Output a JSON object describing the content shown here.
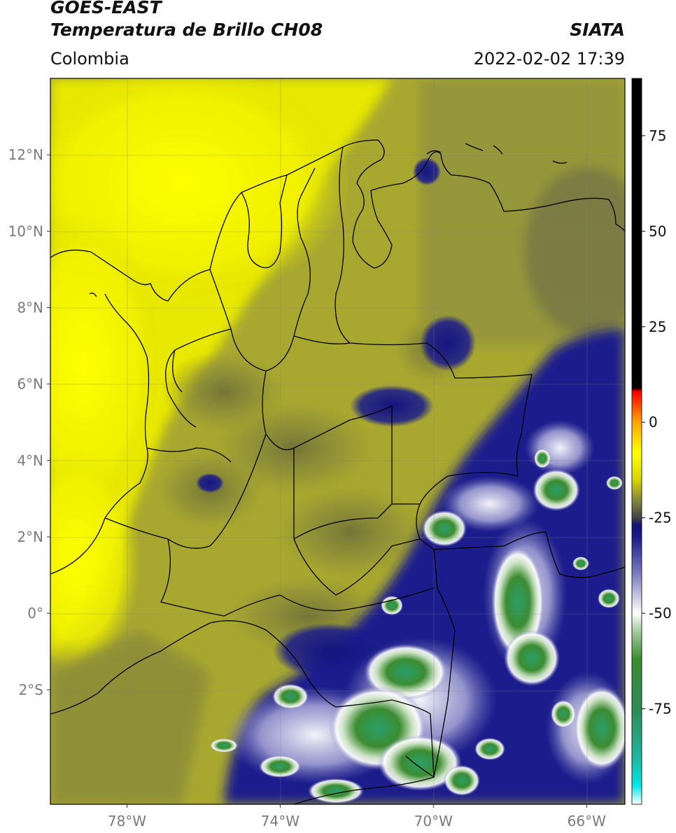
{
  "header": {
    "satellite": "GOES-EAST",
    "product": "Temperatura de Brillo CH08",
    "agency": "SIATA",
    "region": "Colombia",
    "datetime": "2022-02-02 17:39"
  },
  "map": {
    "extent_lon": [
      -80,
      -65
    ],
    "extent_lat": [
      -5,
      14
    ],
    "lat_ticks": [
      {
        "value": 12,
        "label": "12°N"
      },
      {
        "value": 10,
        "label": "10°N"
      },
      {
        "value": 8,
        "label": "8°N"
      },
      {
        "value": 6,
        "label": "6°N"
      },
      {
        "value": 4,
        "label": "4°N"
      },
      {
        "value": 2,
        "label": "2°N"
      },
      {
        "value": 0,
        "label": "0°"
      },
      {
        "value": -2,
        "label": "2°S"
      }
    ],
    "lon_ticks": [
      {
        "value": -78,
        "label": "78°W"
      },
      {
        "value": -74,
        "label": "74°W"
      },
      {
        "value": -70,
        "label": "70°W"
      },
      {
        "value": -66,
        "label": "66°W"
      }
    ]
  },
  "colorbar": {
    "range": [
      -100,
      90
    ],
    "ticks": [
      {
        "value": 75,
        "label": "75"
      },
      {
        "value": 50,
        "label": "50"
      },
      {
        "value": 25,
        "label": "25"
      },
      {
        "value": 0,
        "label": "0"
      },
      {
        "value": -25,
        "label": "-25"
      },
      {
        "value": -50,
        "label": "-50"
      },
      {
        "value": -75,
        "label": "-75"
      }
    ],
    "stops": [
      {
        "value": -100,
        "color": "#ffffff"
      },
      {
        "value": -95,
        "color": "#00e5e5"
      },
      {
        "value": -88,
        "color": "#1fb8a0"
      },
      {
        "value": -75,
        "color": "#2e8b57"
      },
      {
        "value": -62,
        "color": "#3c8c32"
      },
      {
        "value": -55,
        "color": "#9fc89a"
      },
      {
        "value": -50,
        "color": "#ffffff"
      },
      {
        "value": -40,
        "color": "#8080c0"
      },
      {
        "value": -30,
        "color": "#1a1a8c"
      },
      {
        "value": -27,
        "color": "#111177"
      },
      {
        "value": -25,
        "color": "#444444"
      },
      {
        "value": -20,
        "color": "#8a8a3a"
      },
      {
        "value": -15,
        "color": "#d6d600"
      },
      {
        "value": -8,
        "color": "#ffff00"
      },
      {
        "value": 0,
        "color": "#ffa500"
      },
      {
        "value": 8,
        "color": "#ff0000"
      },
      {
        "value": 9,
        "color": "#000000"
      },
      {
        "value": 90,
        "color": "#000000"
      }
    ]
  }
}
